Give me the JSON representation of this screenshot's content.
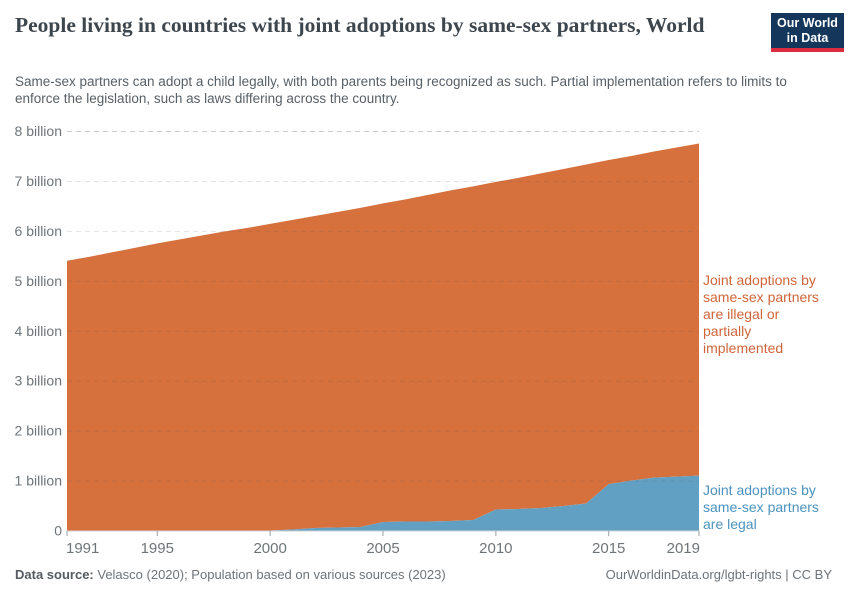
{
  "header": {
    "title": "People living in countries with joint adoptions by same-sex partners, World",
    "subtitle": "Same-sex partners can adopt a child legally, with both parents being recognized as such. Partial implementation refers to limits to enforce the legislation, such as laws differing across the country.",
    "logo": {
      "line1": "Our World",
      "line2": "in Data",
      "bg_color": "#15365b",
      "bar_color": "#dc2c3f"
    }
  },
  "chart_data": {
    "type": "area",
    "stacked": true,
    "title": "People living in countries with joint adoptions by same-sex partners, World",
    "unit": "billion people",
    "x": [
      1991,
      1992,
      1993,
      1994,
      1995,
      1996,
      1997,
      1998,
      1999,
      2000,
      2001,
      2002,
      2003,
      2004,
      2005,
      2006,
      2007,
      2008,
      2009,
      2010,
      2011,
      2012,
      2013,
      2014,
      2015,
      2016,
      2017,
      2018,
      2019
    ],
    "series": [
      {
        "name": "Joint adoptions by same-sex partners are legal",
        "color": "#61a0c2",
        "values": [
          0,
          0,
          0,
          0,
          0,
          0,
          0,
          0,
          0,
          0.01,
          0.03,
          0.06,
          0.07,
          0.08,
          0.18,
          0.19,
          0.19,
          0.2,
          0.22,
          0.43,
          0.44,
          0.46,
          0.5,
          0.55,
          0.94,
          1.01,
          1.07,
          1.09,
          1.11
        ]
      },
      {
        "name": "Joint adoptions by same-sex partners are illegal or partially implemented",
        "color": "#d6713e",
        "values": [
          5.41,
          5.49,
          5.58,
          5.67,
          5.76,
          5.84,
          5.92,
          6.0,
          6.07,
          6.14,
          6.2,
          6.25,
          6.32,
          6.39,
          6.38,
          6.45,
          6.54,
          6.62,
          6.68,
          6.56,
          6.63,
          6.7,
          6.75,
          6.79,
          6.49,
          6.5,
          6.53,
          6.59,
          6.65
        ]
      }
    ],
    "ylim": [
      0,
      8
    ],
    "yticks": [
      {
        "value": 0,
        "label": "0"
      },
      {
        "value": 1,
        "label": "1 billion"
      },
      {
        "value": 2,
        "label": "2 billion"
      },
      {
        "value": 3,
        "label": "3 billion"
      },
      {
        "value": 4,
        "label": "4 billion"
      },
      {
        "value": 5,
        "label": "5 billion"
      },
      {
        "value": 6,
        "label": "6 billion"
      },
      {
        "value": 7,
        "label": "7 billion"
      },
      {
        "value": 8,
        "label": "8 billion"
      },
      {
        "value": 8,
        "label": "8 billion"
      }
    ],
    "xticks": [
      1991,
      1995,
      2000,
      2005,
      2010,
      2015,
      2019
    ],
    "grid": "horizontal-dashed",
    "legend": "direct-labels-right"
  },
  "annotations": {
    "illegal": {
      "text": "Joint adoptions by\nsame-sex partners\nare illegal or\npartially\nimplemented",
      "color": "#d0653a"
    },
    "legal": {
      "text": "Joint adoptions by\nsame-sex partners\nare legal",
      "color": "#4a93bf"
    }
  },
  "footer": {
    "source_label": "Data source:",
    "source_text": " Velasco (2020); Population based on various sources (2023)",
    "credit": "OurWorldinData.org/lgbt-rights | CC BY"
  },
  "style_colors": {
    "gridline": "rgba(80,80,80,0.16)",
    "axis_line": "#d0d2d4",
    "tick": "#9aa0a4",
    "tick_label": "#6e7579"
  }
}
